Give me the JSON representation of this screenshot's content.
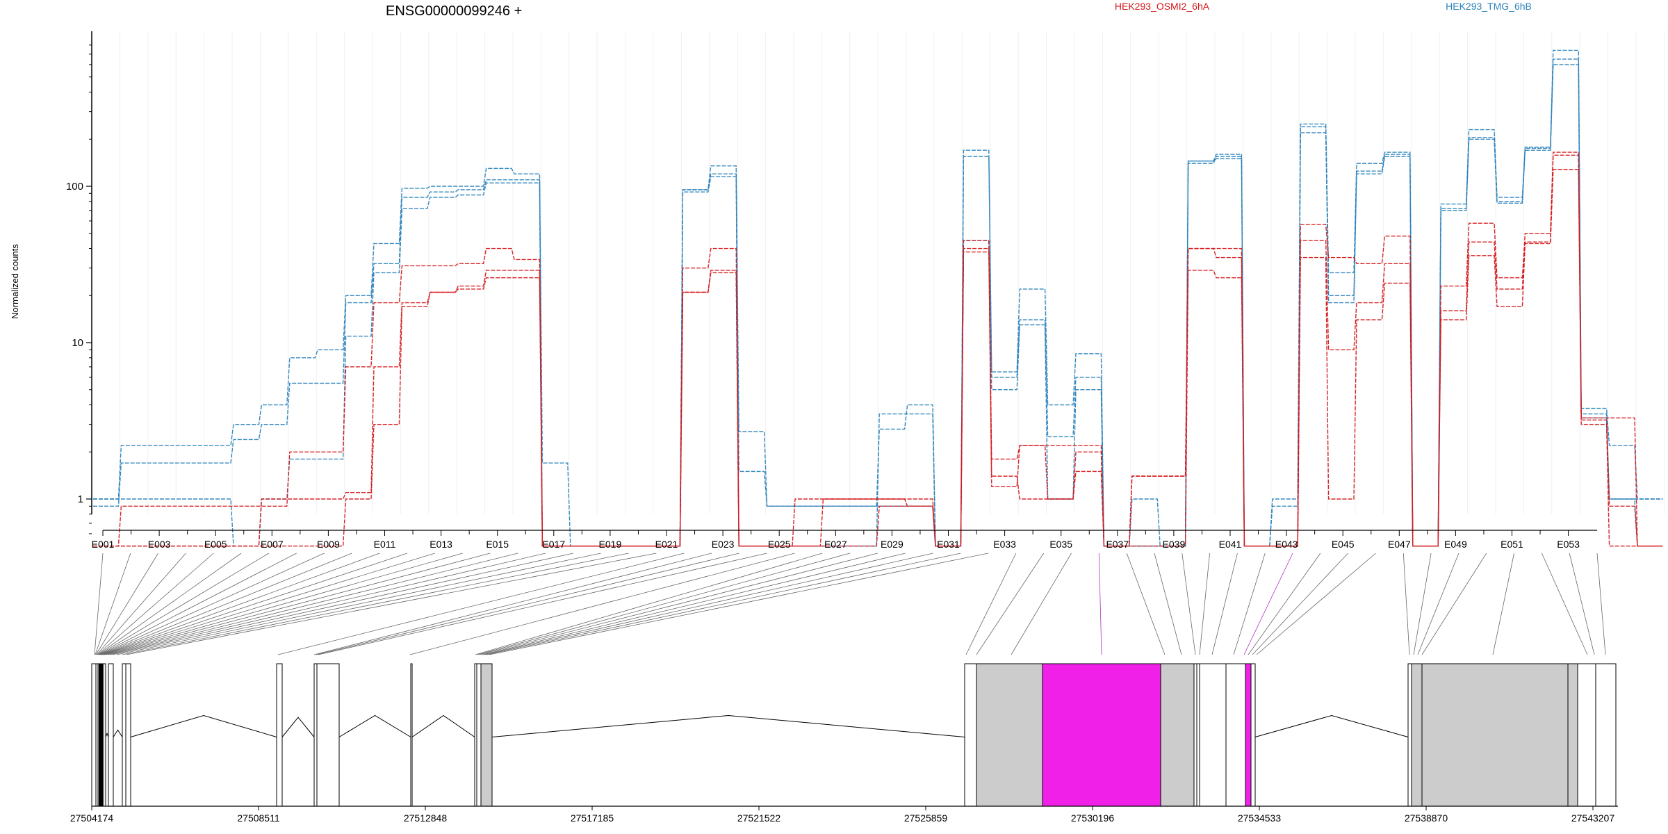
{
  "chart_data": {
    "type": "line",
    "title": "ENSG00000099246 +",
    "ylabel": "Normalized counts",
    "yscale": "log",
    "ylim": [
      0.5,
      850
    ],
    "yticks": [
      "1",
      "10",
      "100"
    ],
    "grid": true,
    "legend": {
      "placement": "top",
      "entries": [
        "HEK293_OSMI2_6hA",
        "HEK293_TMG_6hB"
      ]
    },
    "colors": {
      "HEK293_OSMI2_6hA": "#d7191c",
      "HEK293_TMG_6hB": "#2b83ba",
      "highlight": "#f020e8",
      "exon": "#cccccc"
    },
    "exon_labels": [
      "E001",
      "E003",
      "E005",
      "E007",
      "E009",
      "E011",
      "E013",
      "E015",
      "E017",
      "E019",
      "E021",
      "E023",
      "E025",
      "E027",
      "E029",
      "E031",
      "E033",
      "E035",
      "E037",
      "E039",
      "E041",
      "E043",
      "E045",
      "E047",
      "E049",
      "E051",
      "E053"
    ],
    "genomic_ticks": [
      "27504174",
      "27508511",
      "27512848",
      "27517185",
      "27521522",
      "27525859",
      "27530196",
      "27534533",
      "27538870",
      "27543207"
    ],
    "series": [
      {
        "name": "HEK293_TMG_6hB",
        "values": [
          1.0,
          2.2,
          2.2,
          2.2,
          2.2,
          3.0,
          4.0,
          8.0,
          9.0,
          20.0,
          43.0,
          97.0,
          100.0,
          100.0,
          130.0,
          120.0,
          1.7,
          0.5,
          0.5,
          0.5,
          0.5,
          95.0,
          135.0,
          2.7,
          0.9,
          0.9,
          0.9,
          0.9,
          2.8,
          4.0,
          0.5,
          170.0,
          6.5,
          22.0,
          4.0,
          8.5,
          0.5,
          1.0,
          0.5,
          145.0,
          160.0,
          0.5,
          1.0,
          250.0,
          28.0,
          140.0,
          165.0,
          0.5,
          77.0,
          230.0,
          85.0,
          178.0,
          740.0,
          3.8,
          2.2,
          1.0
        ]
      },
      {
        "name": "HEK293_TMG_6hB",
        "values": [
          0.9,
          1.7,
          1.7,
          1.7,
          1.7,
          2.4,
          3.0,
          5.5,
          5.5,
          18.0,
          32.0,
          85.0,
          92.0,
          95.0,
          110.0,
          110.0,
          0.5,
          0.5,
          0.5,
          0.5,
          0.5,
          95.0,
          120.0,
          1.5,
          0.9,
          0.9,
          0.9,
          0.9,
          0.9,
          0.9,
          0.5,
          155.0,
          6.0,
          14.0,
          2.5,
          6.0,
          0.5,
          0.5,
          0.5,
          145.0,
          150.0,
          0.5,
          0.9,
          220.0,
          20.0,
          120.0,
          155.0,
          0.5,
          72.0,
          200.0,
          80.0,
          175.0,
          650.0,
          3.5,
          1.0,
          1.0
        ]
      },
      {
        "name": "HEK293_TMG_6hB",
        "values": [
          1.0,
          1.0,
          1.0,
          1.0,
          1.0,
          0.5,
          1.0,
          1.8,
          1.8,
          11.0,
          28.0,
          72.0,
          85.0,
          88.0,
          105.0,
          105.0,
          0.5,
          0.5,
          0.5,
          0.5,
          0.5,
          92.0,
          115.0,
          0.5,
          0.5,
          0.5,
          0.5,
          0.5,
          3.5,
          3.5,
          0.5,
          45.0,
          5.0,
          13.0,
          1.0,
          5.0,
          0.5,
          0.5,
          0.5,
          140.0,
          155.0,
          0.5,
          0.5,
          240.0,
          18.0,
          125.0,
          160.0,
          0.5,
          70.0,
          205.0,
          78.0,
          170.0,
          600.0,
          3.3,
          1.0,
          0.5
        ]
      },
      {
        "name": "HEK293_OSMI2_6hA",
        "values": [
          0.5,
          0.9,
          0.9,
          0.9,
          0.9,
          0.9,
          0.9,
          2.0,
          2.0,
          7.0,
          18.0,
          31.0,
          31.0,
          32.0,
          40.0,
          34.0,
          0.5,
          0.5,
          0.5,
          0.5,
          0.5,
          30.0,
          40.0,
          0.5,
          0.5,
          0.5,
          1.0,
          1.0,
          1.0,
          1.0,
          0.5,
          45.0,
          1.8,
          2.2,
          2.2,
          2.2,
          0.5,
          1.4,
          1.4,
          40.0,
          35.0,
          0.5,
          0.5,
          57.0,
          35.0,
          32.0,
          48.0,
          0.5,
          23.0,
          58.0,
          26.0,
          50.0,
          165.0,
          3.3,
          3.3,
          0.5
        ]
      },
      {
        "name": "HEK293_OSMI2_6hA",
        "values": [
          0.5,
          0.5,
          0.5,
          0.5,
          0.5,
          0.5,
          1.0,
          1.0,
          1.0,
          1.1,
          7.0,
          18.0,
          21.0,
          23.0,
          29.0,
          29.0,
          0.5,
          0.5,
          0.5,
          0.5,
          0.5,
          21.0,
          29.0,
          0.5,
          0.5,
          1.0,
          1.0,
          1.0,
          1.0,
          0.9,
          0.5,
          40.0,
          1.4,
          1.0,
          1.0,
          2.0,
          0.5,
          1.4,
          1.4,
          40.0,
          40.0,
          0.5,
          0.5,
          45.0,
          9.0,
          18.0,
          32.0,
          0.5,
          16.0,
          44.0,
          22.0,
          44.0,
          158.0,
          3.2,
          0.9,
          0.5
        ]
      },
      {
        "name": "HEK293_OSMI2_6hA",
        "values": [
          0.5,
          0.5,
          0.5,
          0.5,
          0.5,
          0.5,
          0.5,
          0.5,
          0.5,
          1.0,
          3.0,
          17.0,
          21.0,
          22.0,
          26.0,
          26.0,
          0.5,
          0.5,
          0.5,
          0.5,
          0.5,
          21.0,
          28.0,
          0.5,
          0.5,
          0.5,
          0.5,
          0.5,
          0.9,
          0.9,
          0.5,
          38.0,
          1.2,
          2.2,
          1.0,
          1.5,
          0.5,
          0.5,
          0.5,
          29.0,
          26.0,
          0.5,
          0.5,
          35.0,
          1.0,
          14.0,
          24.0,
          0.5,
          14.0,
          36.0,
          17.0,
          43.0,
          128.0,
          3.0,
          0.5,
          0.5
        ]
      }
    ]
  }
}
